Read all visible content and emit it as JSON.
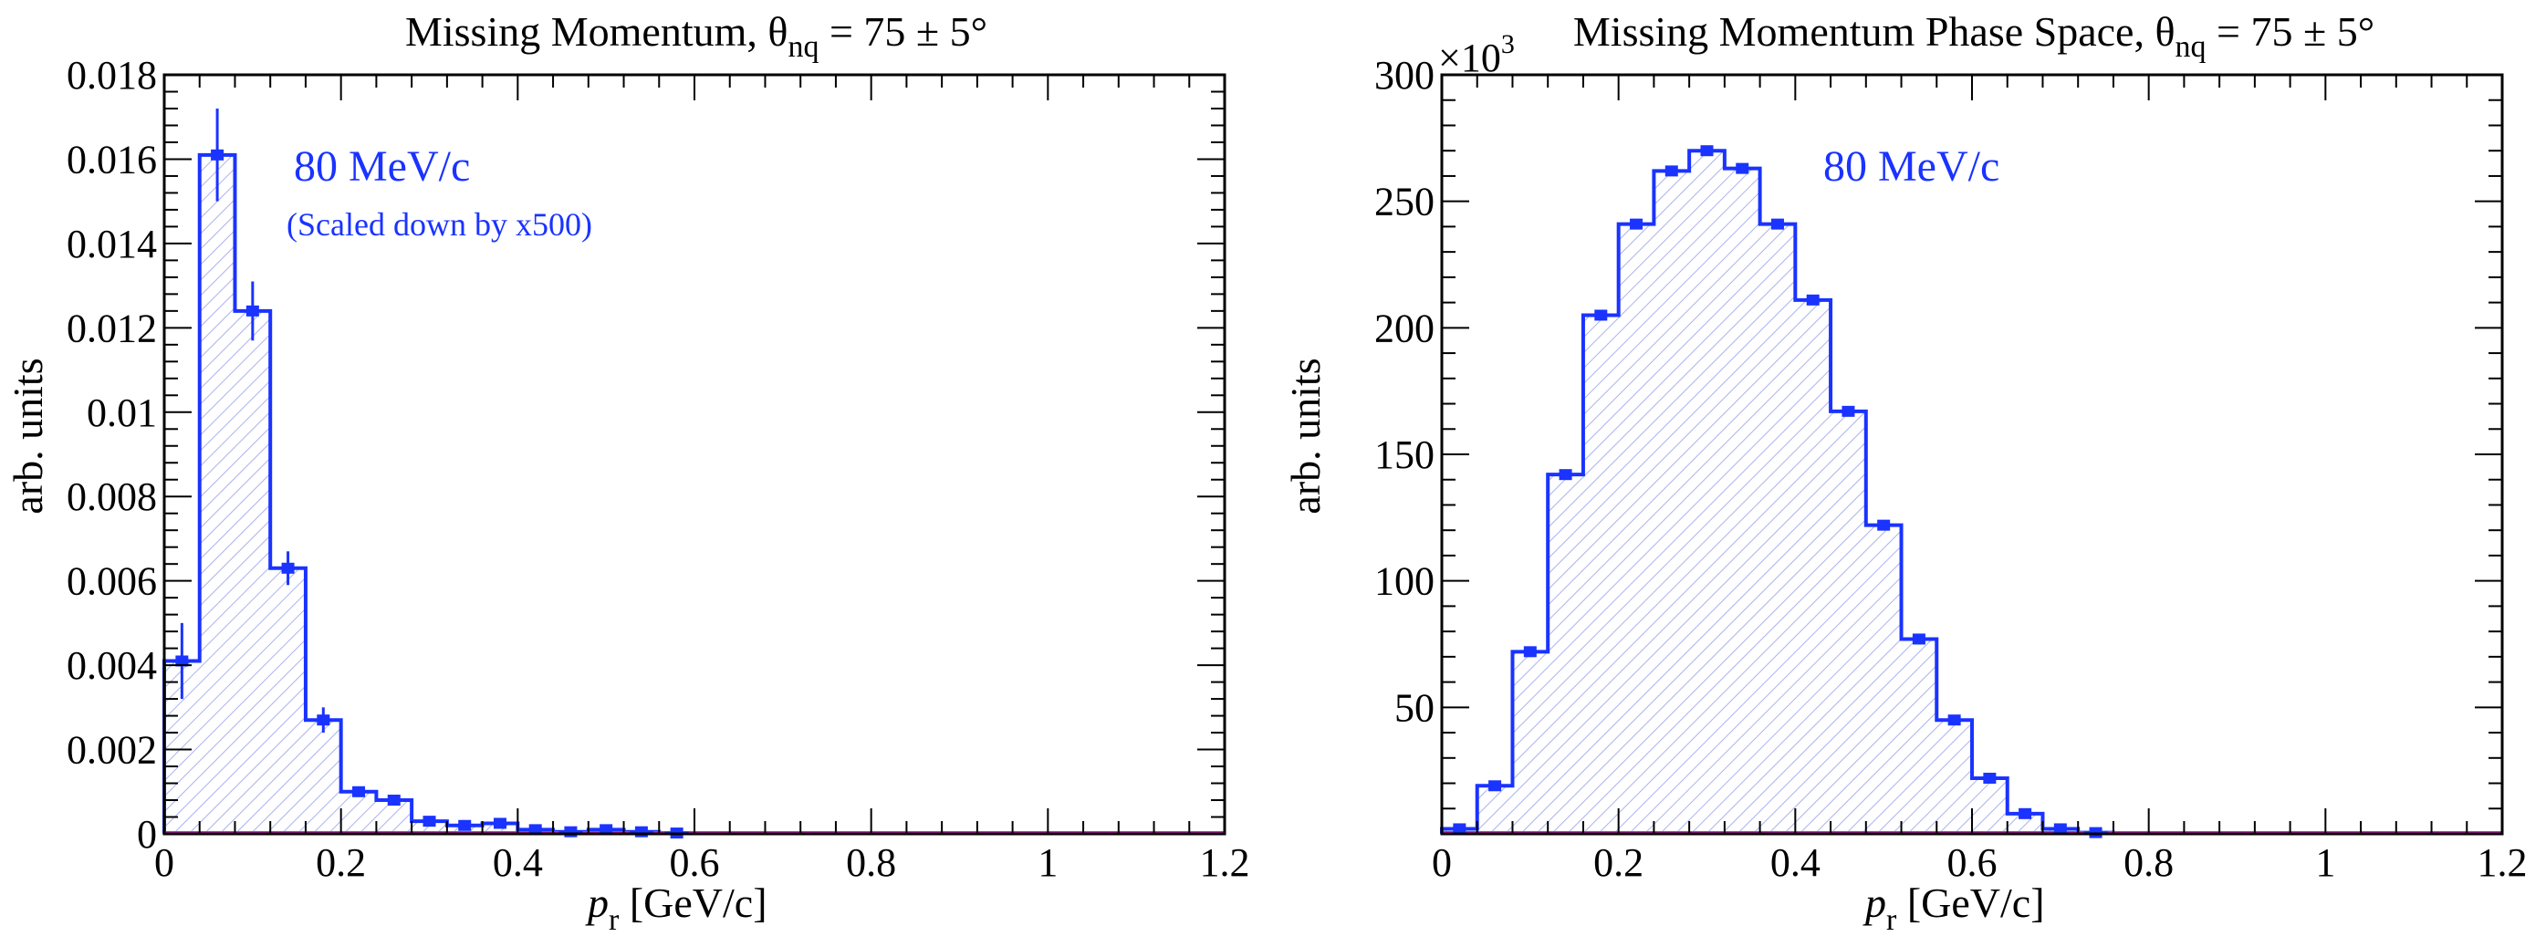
{
  "colors": {
    "series": "#1a33ff",
    "hatch": "#aab2ee",
    "baseline": "#e020c0",
    "axis": "#000000"
  },
  "chart_data": [
    {
      "type": "bar",
      "title": "Missing Momentum, θ",
      "title_sub": "nq",
      "title_tail": " = 75 ± 5°",
      "xlabel": "p",
      "xlabel_sub": "r",
      "xlabel_tail": " [GeV/c]",
      "ylabel": "arb. units",
      "xlim": [
        0,
        1.2
      ],
      "ylim": [
        0,
        0.018
      ],
      "grid": false,
      "fill": "hatched",
      "xticks": [
        0,
        0.2,
        0.4,
        0.6,
        0.8,
        1,
        1.2
      ],
      "xtick_labels": [
        "0",
        "0.2",
        "0.4",
        "0.6",
        "0.8",
        "1",
        "1.2"
      ],
      "yticks": [
        0,
        0.002,
        0.004,
        0.006,
        0.008,
        0.01,
        0.012,
        0.014,
        0.016,
        0.018
      ],
      "ytick_labels": [
        "0",
        "0.002",
        "0.004",
        "0.006",
        "0.008",
        "0.01",
        "0.012",
        "0.014",
        "0.016",
        "0.018"
      ],
      "annotations": [
        "80 MeV/c",
        "(Scaled down by x500)"
      ],
      "series": [
        {
          "name": "80 MeV/c",
          "bin_edges": [
            0,
            0.04,
            0.08,
            0.12,
            0.16,
            0.2,
            0.24,
            0.28,
            0.32,
            0.36,
            0.4,
            0.44,
            0.48,
            0.52,
            0.56,
            0.6
          ],
          "values": [
            0.0041,
            0.0161,
            0.0124,
            0.0063,
            0.0027,
            0.001,
            0.0008,
            0.0003,
            0.0002,
            0.00025,
            0.0001,
            5e-05,
            0.0001,
            5e-05,
            2e-05
          ],
          "errors": [
            0.0009,
            0.0011,
            0.0007,
            0.0004,
            0.0003,
            0.00012,
            0.0001,
            6e-05,
            5e-05,
            5e-05,
            3e-05,
            2e-05,
            3e-05,
            2e-05,
            1e-05
          ]
        }
      ]
    },
    {
      "type": "bar",
      "title": "Missing Momentum Phase Space, θ",
      "title_sub": "nq",
      "title_tail": " = 75 ± 5°",
      "xlabel": "p",
      "xlabel_sub": "r",
      "xlabel_tail": " [GeV/c]",
      "ylabel": "arb. units",
      "y_multiplier_base": "×10",
      "y_multiplier_exp": "3",
      "xlim": [
        0,
        1.2
      ],
      "ylim": [
        0,
        300
      ],
      "grid": false,
      "fill": "hatched",
      "xticks": [
        0,
        0.2,
        0.4,
        0.6,
        0.8,
        1,
        1.2
      ],
      "xtick_labels": [
        "0",
        "0.2",
        "0.4",
        "0.6",
        "0.8",
        "1",
        "1.2"
      ],
      "yticks": [
        50,
        100,
        150,
        200,
        250,
        300
      ],
      "ytick_labels": [
        "50",
        "100",
        "150",
        "200",
        "250",
        "300"
      ],
      "annotations": [
        "80 MeV/c"
      ],
      "series": [
        {
          "name": "80 MeV/c",
          "bin_edges": [
            0,
            0.04,
            0.08,
            0.12,
            0.16,
            0.2,
            0.24,
            0.28,
            0.32,
            0.36,
            0.4,
            0.44,
            0.48,
            0.52,
            0.56,
            0.6,
            0.64,
            0.68,
            0.72,
            0.76
          ],
          "values": [
            2,
            19,
            72,
            142,
            205,
            241,
            262,
            270,
            263,
            241,
            211,
            167,
            122,
            77,
            45,
            22,
            8,
            2,
            0.5
          ],
          "errors": [
            0,
            0,
            0,
            0,
            0,
            0,
            0,
            0,
            0,
            0,
            0,
            0,
            0,
            0,
            0,
            0,
            0,
            0,
            0
          ]
        }
      ]
    }
  ]
}
